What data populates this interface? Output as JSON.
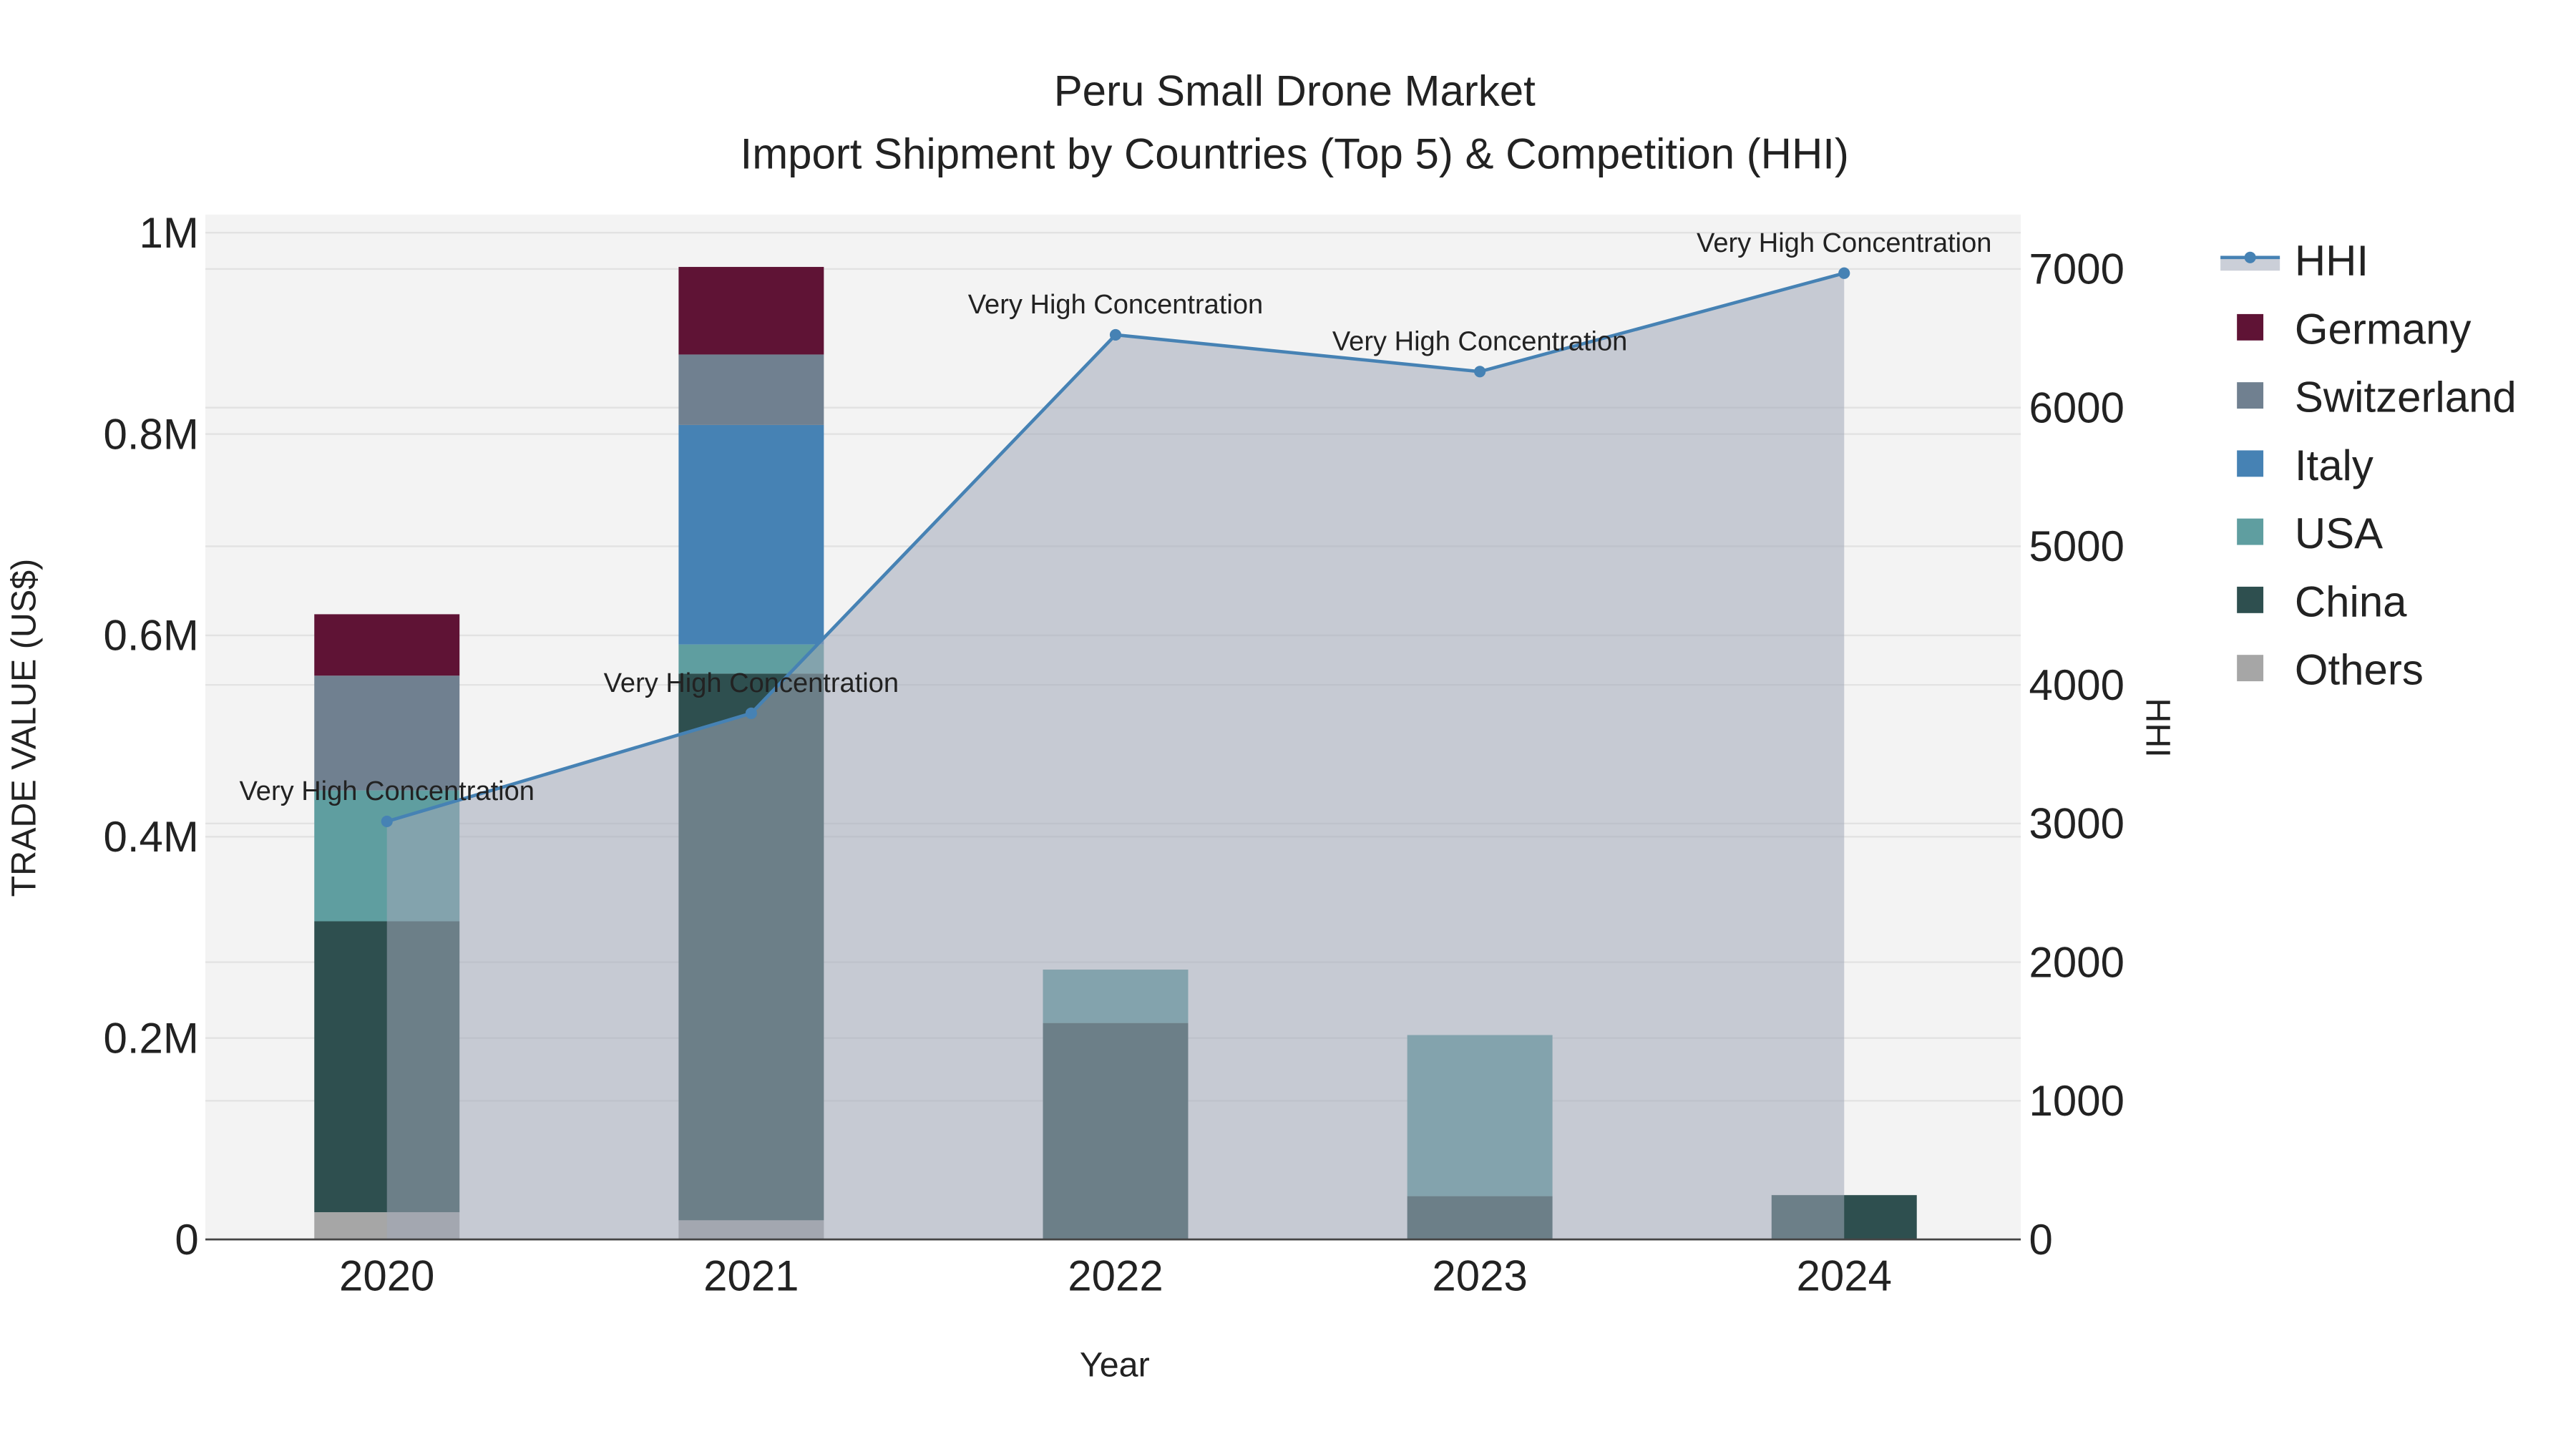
{
  "chart_data": {
    "type": "bar",
    "title": "Peru Small Drone Market",
    "subtitle": "Import Shipment by Countries (Top 5) & Competition (HHI)",
    "xlabel": "Year",
    "ylabel": "TRADE VALUE (US$)",
    "y2label": "HHI",
    "categories": [
      "2020",
      "2021",
      "2022",
      "2023",
      "2024"
    ],
    "ylim": [
      0,
      1000000
    ],
    "y_ticks": [
      {
        "v": 0,
        "label": "0"
      },
      {
        "v": 200000,
        "label": "0.2M"
      },
      {
        "v": 400000,
        "label": "0.4M"
      },
      {
        "v": 600000,
        "label": "0.6M"
      },
      {
        "v": 800000,
        "label": "0.8M"
      },
      {
        "v": 1000000,
        "label": "1M"
      }
    ],
    "y2lim": [
      0,
      7400
    ],
    "y2_ticks": [
      0,
      1000,
      2000,
      3000,
      4000,
      5000,
      6000,
      7000
    ],
    "stacked": true,
    "series": [
      {
        "name": "Others",
        "color": "#a6a6a6",
        "values": [
          27000,
          19000,
          0,
          0,
          0
        ]
      },
      {
        "name": "China",
        "color": "#2e4f4f",
        "values": [
          289000,
          543000,
          215000,
          43000,
          44000
        ]
      },
      {
        "name": "USA",
        "color": "#5f9ea0",
        "values": [
          130000,
          29000,
          53000,
          160000,
          0
        ]
      },
      {
        "name": "Italy",
        "color": "#4682b4",
        "values": [
          0,
          218000,
          0,
          0,
          0
        ]
      },
      {
        "name": "Switzerland",
        "color": "#708090",
        "values": [
          114000,
          70000,
          0,
          0,
          0
        ]
      },
      {
        "name": "Germany",
        "color": "#5f1335",
        "values": [
          61000,
          87000,
          0,
          0,
          0
        ]
      }
    ],
    "line": {
      "name": "HHI",
      "color": "#4682b4",
      "fill": "rgba(160,168,184,0.55)",
      "values": [
        3015,
        3795,
        6525,
        6260,
        6970
      ],
      "annotations": [
        "Very High Concentration",
        "Very High Concentration",
        "Very High Concentration",
        "Very High Concentration",
        "Very High Concentration"
      ]
    },
    "legend": {
      "placement": "right",
      "order": [
        "HHI",
        "Germany",
        "Switzerland",
        "Italy",
        "USA",
        "China",
        "Others"
      ]
    },
    "grid": true
  }
}
